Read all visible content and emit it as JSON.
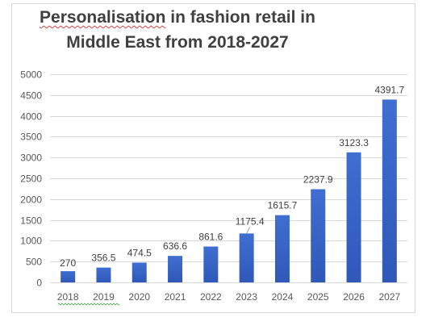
{
  "chart_data": {
    "type": "bar",
    "title_line1": "Personalisation in fashion retail in",
    "title_line1_word1": "Personalisation",
    "title_line1_rest": " in fashion retail in",
    "title_line2": "Middle East from 2018-2027",
    "categories": [
      "2018",
      "2019",
      "2020",
      "2021",
      "2022",
      "2023",
      "2024",
      "2025",
      "2026",
      "2027"
    ],
    "values": [
      270,
      356.5,
      474.5,
      636.6,
      861.6,
      1175.4,
      1615.7,
      2237.9,
      3123.3,
      4391.7
    ],
    "data_labels": [
      "270",
      "356.5",
      "474.5",
      "636.6",
      "861.6",
      "1175.4",
      "1615.7",
      "2237.9",
      "3123.3",
      "4391.7"
    ],
    "yticks": [
      0,
      500,
      1000,
      1500,
      2000,
      2500,
      3000,
      3500,
      4000,
      4500,
      5000
    ],
    "ylim": [
      0,
      5000
    ],
    "grid": true,
    "legend": "none",
    "colors": {
      "bar_top": "#3f6fd1",
      "bar_bottom": "#2f58b8",
      "grid": "#d9d9d9"
    }
  }
}
